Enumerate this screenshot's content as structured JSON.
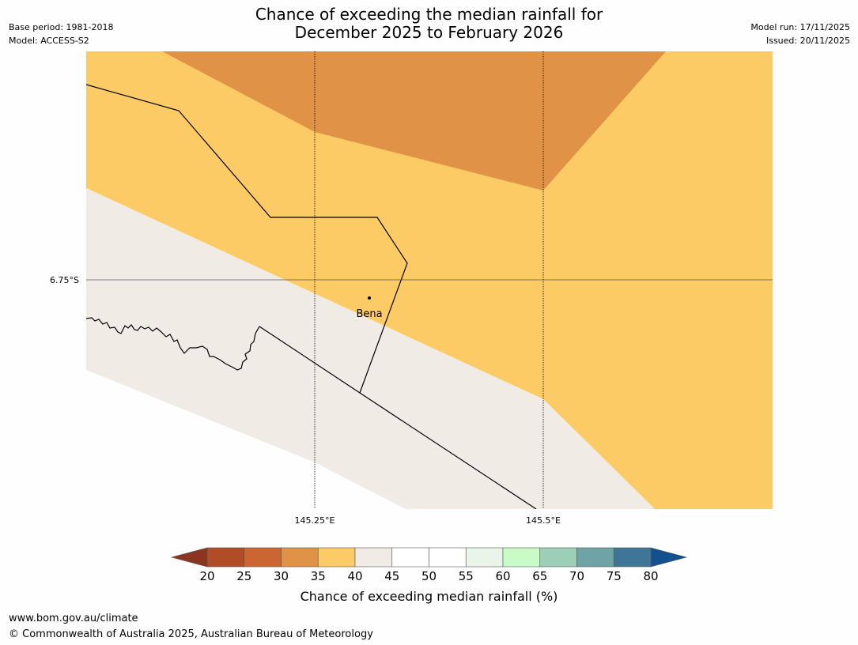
{
  "title_line1": "Chance of exceeding the median rainfall for",
  "title_line2": "December 2025 to February 2026",
  "meta_left": {
    "base_period": "Base period: 1981-2018",
    "model": "Model: ACCESS-S2"
  },
  "meta_right": {
    "model_run": "Model run: 17/11/2025",
    "issued": "Issued: 20/11/2025"
  },
  "map": {
    "lat_label": "6.75°S",
    "lon_labels": [
      "145.25°E",
      "145.5°E"
    ],
    "place": "Bena",
    "colors": {
      "band_30_35": "#e09346",
      "band_35_40": "#fdcb66",
      "band_40_45": "#f0ebe5"
    }
  },
  "colorbar": {
    "title": "Chance of exceeding median rainfall (%)",
    "ticks": [
      "20",
      "25",
      "30",
      "35",
      "40",
      "45",
      "50",
      "55",
      "60",
      "65",
      "70",
      "75",
      "80"
    ],
    "colors": [
      "#b04c26",
      "#cb6633",
      "#e09346",
      "#fdcb66",
      "#f0ebe5",
      "#ffffff",
      "#ffffff",
      "#eaf5ea",
      "#c8fbc8",
      "#9dcfb8",
      "#6ea4a5",
      "#3f7698"
    ],
    "under_color": "#8b3420",
    "over_color": "#14508e"
  },
  "footer": {
    "url": "www.bom.gov.au/climate",
    "copyright": "© Commonwealth of Australia 2025, Australian Bureau of Meteorology"
  }
}
